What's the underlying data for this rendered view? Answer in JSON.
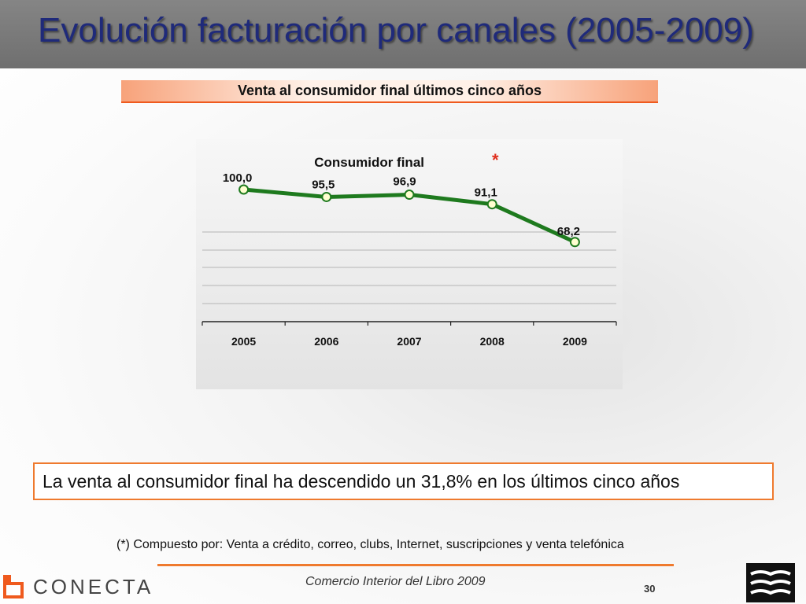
{
  "slide": {
    "title": "Evolución facturación por canales (2005-2009)",
    "subtitle": "Venta al consumidor final últimos cinco años",
    "callout": "La venta al consumidor final ha descendido un 31,8% en los últimos cinco años",
    "footnote": "(*) Compuesto por: Venta a crédito, correo, clubs, Internet, suscripciones y venta telefónica",
    "footer_text": "Comercio Interior del Libro 2009",
    "page_number": "30",
    "logo_text": "CONECTA"
  },
  "colors": {
    "title": "#1f2a7a",
    "accent_orange": "#ef7a2e",
    "line": "#1e7a1e",
    "marker_fill": "#ffffd0"
  },
  "chart_data": {
    "type": "line",
    "title": "Consumidor final",
    "title_mark": "*",
    "categories": [
      "2005",
      "2006",
      "2007",
      "2008",
      "2009"
    ],
    "values": [
      100.0,
      95.5,
      96.9,
      91.1,
      68.2
    ],
    "data_labels": [
      "100,0",
      "95,5",
      "96,9",
      "91,1",
      "68,2"
    ],
    "grid": true,
    "legend": "none"
  }
}
